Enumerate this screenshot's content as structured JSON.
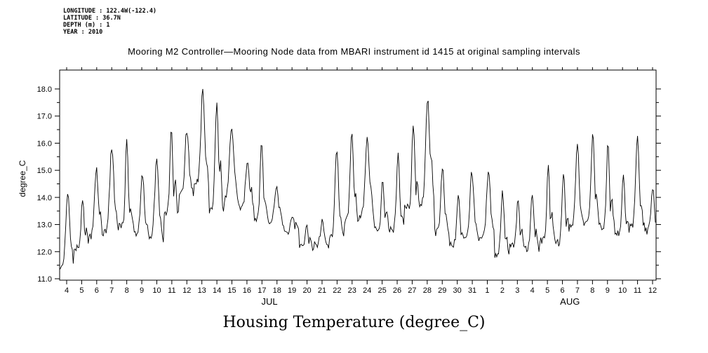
{
  "header": {
    "longitude": "LONGITUDE : 122.4W(-122.4)",
    "latitude": "LATITUDE : 36.7N",
    "depth": "DEPTH (m) : 1",
    "year": "YEAR : 2010"
  },
  "title": "Mooring M2 Controller—Mooring Node data from MBARI instrument id 1415 at original sampling intervals",
  "footer_title": "Housing Temperature (degree_C)",
  "chart_data": {
    "type": "line",
    "title": "Mooring M2 Controller—Mooring Node data from MBARI instrument id 1415 at original sampling intervals",
    "xlabel": "",
    "ylabel": "degree_C",
    "ylim": [
      11.0,
      18.0
    ],
    "yticks": [
      "11.0",
      "12.0",
      "13.0",
      "14.0",
      "15.0",
      "16.0",
      "17.0",
      "18.0"
    ],
    "grid": false,
    "legend": "none",
    "line_color": "#000000",
    "x_day_labels": [
      "4",
      "5",
      "6",
      "7",
      "8",
      "9",
      "10",
      "11",
      "12",
      "13",
      "14",
      "15",
      "16",
      "17",
      "18",
      "19",
      "20",
      "21",
      "22",
      "23",
      "24",
      "25",
      "26",
      "27",
      "28",
      "29",
      "30",
      "31",
      "1",
      "2",
      "3",
      "4",
      "5",
      "6",
      "7",
      "8",
      "9",
      "10",
      "11",
      "12"
    ],
    "month_ranges": [
      {
        "label": "JUL",
        "start": 0,
        "end": 27
      },
      {
        "label": "AUG",
        "start": 28,
        "end": 39
      }
    ],
    "series": [
      {
        "name": "Housing Temperature (degree_C)",
        "unit": "degree_C",
        "daily_extremes": [
          {
            "day": "JUL 4",
            "min": 11.3,
            "max": 14.2
          },
          {
            "day": "JUL 5",
            "min": 12.1,
            "max": 13.9
          },
          {
            "day": "JUL 6",
            "min": 12.4,
            "max": 15.0
          },
          {
            "day": "JUL 7",
            "min": 12.6,
            "max": 15.9
          },
          {
            "day": "JUL 8",
            "min": 12.8,
            "max": 16.1
          },
          {
            "day": "JUL 9",
            "min": 12.6,
            "max": 14.9
          },
          {
            "day": "JUL 10",
            "min": 12.3,
            "max": 15.3
          },
          {
            "day": "JUL 11",
            "min": 13.3,
            "max": 16.5
          },
          {
            "day": "JUL 12",
            "min": 14.0,
            "max": 16.5
          },
          {
            "day": "JUL 13",
            "min": 14.4,
            "max": 18.0
          },
          {
            "day": "JUL 14",
            "min": 13.3,
            "max": 17.5
          },
          {
            "day": "JUL 15",
            "min": 13.8,
            "max": 16.6
          },
          {
            "day": "JUL 16",
            "min": 13.5,
            "max": 15.4
          },
          {
            "day": "JUL 17",
            "min": 13.1,
            "max": 16.0
          },
          {
            "day": "JUL 18",
            "min": 13.0,
            "max": 14.4
          },
          {
            "day": "JUL 19",
            "min": 12.7,
            "max": 13.4
          },
          {
            "day": "JUL 20",
            "min": 12.1,
            "max": 13.0
          },
          {
            "day": "JUL 21",
            "min": 12.2,
            "max": 13.1
          },
          {
            "day": "JUL 22",
            "min": 12.4,
            "max": 15.8
          },
          {
            "day": "JUL 23",
            "min": 13.0,
            "max": 16.4
          },
          {
            "day": "JUL 24",
            "min": 13.2,
            "max": 16.1
          },
          {
            "day": "JUL 25",
            "min": 12.8,
            "max": 14.6
          },
          {
            "day": "JUL 26",
            "min": 12.7,
            "max": 15.6
          },
          {
            "day": "JUL 27",
            "min": 13.5,
            "max": 16.8
          },
          {
            "day": "JUL 28",
            "min": 13.6,
            "max": 17.7
          },
          {
            "day": "JUL 29",
            "min": 12.6,
            "max": 15.2
          },
          {
            "day": "JUL 30",
            "min": 12.2,
            "max": 14.0
          },
          {
            "day": "JUL 31",
            "min": 12.4,
            "max": 14.9
          },
          {
            "day": "AUG 1",
            "min": 12.4,
            "max": 15.0
          },
          {
            "day": "AUG 2",
            "min": 11.7,
            "max": 14.2
          },
          {
            "day": "AUG 3",
            "min": 12.2,
            "max": 13.9
          },
          {
            "day": "AUG 4",
            "min": 12.0,
            "max": 14.2
          },
          {
            "day": "AUG 5",
            "min": 12.3,
            "max": 15.2
          },
          {
            "day": "AUG 6",
            "min": 12.2,
            "max": 15.0
          },
          {
            "day": "AUG 7",
            "min": 12.8,
            "max": 16.0
          },
          {
            "day": "AUG 8",
            "min": 12.9,
            "max": 16.4
          },
          {
            "day": "AUG 9",
            "min": 12.8,
            "max": 16.0
          },
          {
            "day": "AUG 10",
            "min": 12.6,
            "max": 14.9
          },
          {
            "day": "AUG 11",
            "min": 12.8,
            "max": 16.2
          },
          {
            "day": "AUG 12",
            "min": 12.7,
            "max": 14.3
          }
        ]
      }
    ]
  }
}
